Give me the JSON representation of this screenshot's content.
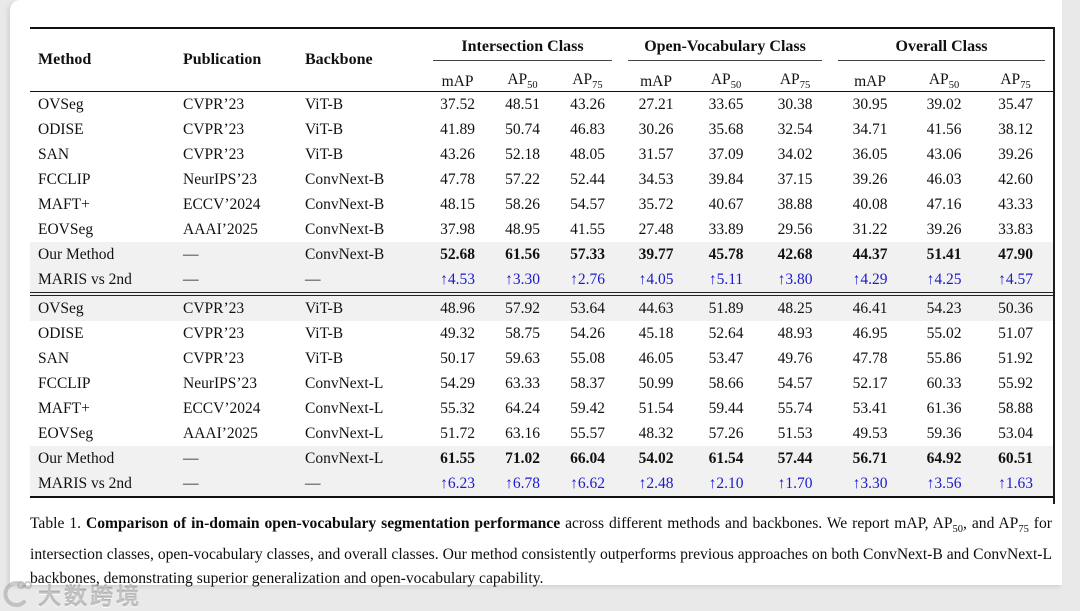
{
  "colors": {
    "accent_blue": "#1a1ace",
    "shaded_row": "#f1f1f1",
    "rule": "#111111"
  },
  "watermark": {
    "text": "大数跨境"
  },
  "table": {
    "col_headers": [
      "Method",
      "Publication",
      "Backbone"
    ],
    "groups": [
      {
        "label": "Intersection Class"
      },
      {
        "label": "Open-Vocabulary Class"
      },
      {
        "label": "Overall Class"
      }
    ],
    "subcols": [
      {
        "base": "mAP",
        "sub": ""
      },
      {
        "base": "AP",
        "sub": "50"
      },
      {
        "base": "AP",
        "sub": "75"
      }
    ],
    "blocks": [
      {
        "rows": [
          {
            "method": "OVSeg",
            "publication": "CVPR’23",
            "backbone": "ViT-B",
            "values": [
              "37.52",
              "48.51",
              "43.26",
              "27.21",
              "33.65",
              "30.38",
              "30.95",
              "39.02",
              "35.47"
            ],
            "shaded": false,
            "bold": false,
            "blue": false
          },
          {
            "method": "ODISE",
            "publication": "CVPR’23",
            "backbone": "ViT-B",
            "values": [
              "41.89",
              "50.74",
              "46.83",
              "30.26",
              "35.68",
              "32.54",
              "34.71",
              "41.56",
              "38.12"
            ],
            "shaded": false,
            "bold": false,
            "blue": false
          },
          {
            "method": "SAN",
            "publication": "CVPR’23",
            "backbone": "ViT-B",
            "values": [
              "43.26",
              "52.18",
              "48.05",
              "31.57",
              "37.09",
              "34.02",
              "36.05",
              "43.06",
              "39.26"
            ],
            "shaded": false,
            "bold": false,
            "blue": false
          },
          {
            "method": "FCCLIP",
            "publication": "NeurIPS’23",
            "backbone": "ConvNext-B",
            "values": [
              "47.78",
              "57.22",
              "52.44",
              "34.53",
              "39.84",
              "37.15",
              "39.26",
              "46.03",
              "42.60"
            ],
            "shaded": false,
            "bold": false,
            "blue": false
          },
          {
            "method": "MAFT+",
            "publication": "ECCV’2024",
            "backbone": "ConvNext-B",
            "values": [
              "48.15",
              "58.26",
              "54.57",
              "35.72",
              "40.67",
              "38.88",
              "40.08",
              "47.16",
              "43.33"
            ],
            "shaded": false,
            "bold": false,
            "blue": false
          },
          {
            "method": "EOVSeg",
            "publication": "AAAI’2025",
            "backbone": "ConvNext-B",
            "values": [
              "37.98",
              "48.95",
              "41.55",
              "27.48",
              "33.89",
              "29.56",
              "31.22",
              "39.26",
              "33.83"
            ],
            "shaded": false,
            "bold": false,
            "blue": false
          },
          {
            "method": "Our Method",
            "publication": "—",
            "backbone": "ConvNext-B",
            "values": [
              "52.68",
              "61.56",
              "57.33",
              "39.77",
              "45.78",
              "42.68",
              "44.37",
              "51.41",
              "47.90"
            ],
            "shaded": true,
            "bold": true,
            "blue": false
          },
          {
            "method": "MARIS vs 2nd",
            "publication": "—",
            "backbone": "—",
            "values": [
              "↑4.53",
              "↑3.30",
              "↑2.76",
              "↑4.05",
              "↑5.11",
              "↑3.80",
              "↑4.29",
              "↑4.25",
              "↑4.57"
            ],
            "shaded": true,
            "bold": false,
            "blue": true
          }
        ]
      },
      {
        "rows": [
          {
            "method": "OVSeg",
            "publication": "CVPR’23",
            "backbone": "ViT-B",
            "values": [
              "48.96",
              "57.92",
              "53.64",
              "44.63",
              "51.89",
              "48.25",
              "46.41",
              "54.23",
              "50.36"
            ],
            "shaded": true,
            "bold": false,
            "blue": false
          },
          {
            "method": "ODISE",
            "publication": "CVPR’23",
            "backbone": "ViT-B",
            "values": [
              "49.32",
              "58.75",
              "54.26",
              "45.18",
              "52.64",
              "48.93",
              "46.95",
              "55.02",
              "51.07"
            ],
            "shaded": false,
            "bold": false,
            "blue": false
          },
          {
            "method": "SAN",
            "publication": "CVPR’23",
            "backbone": "ViT-B",
            "values": [
              "50.17",
              "59.63",
              "55.08",
              "46.05",
              "53.47",
              "49.76",
              "47.78",
              "55.86",
              "51.92"
            ],
            "shaded": false,
            "bold": false,
            "blue": false
          },
          {
            "method": "FCCLIP",
            "publication": "NeurIPS’23",
            "backbone": "ConvNext-L",
            "values": [
              "54.29",
              "63.33",
              "58.37",
              "50.99",
              "58.66",
              "54.57",
              "52.17",
              "60.33",
              "55.92"
            ],
            "shaded": false,
            "bold": false,
            "blue": false
          },
          {
            "method": "MAFT+",
            "publication": "ECCV’2024",
            "backbone": "ConvNext-L",
            "values": [
              "55.32",
              "64.24",
              "59.42",
              "51.54",
              "59.44",
              "55.74",
              "53.41",
              "61.36",
              "58.88"
            ],
            "shaded": false,
            "bold": false,
            "blue": false
          },
          {
            "method": "EOVSeg",
            "publication": "AAAI’2025",
            "backbone": "ConvNext-L",
            "values": [
              "51.72",
              "63.16",
              "55.57",
              "48.32",
              "57.26",
              "51.53",
              "49.53",
              "59.36",
              "53.04"
            ],
            "shaded": false,
            "bold": false,
            "blue": false
          },
          {
            "method": "Our Method",
            "publication": "—",
            "backbone": "ConvNext-L",
            "values": [
              "61.55",
              "71.02",
              "66.04",
              "54.02",
              "61.54",
              "57.44",
              "56.71",
              "64.92",
              "60.51"
            ],
            "shaded": true,
            "bold": true,
            "blue": false
          },
          {
            "method": "MARIS vs 2nd",
            "publication": "—",
            "backbone": "—",
            "values": [
              "↑6.23",
              "↑6.78",
              "↑6.62",
              "↑2.48",
              "↑2.10",
              "↑1.70",
              "↑3.30",
              "↑3.56",
              "↑1.63"
            ],
            "shaded": true,
            "bold": false,
            "blue": true
          }
        ]
      }
    ]
  },
  "caption": {
    "label": "Table 1.",
    "bold": "Comparison of in-domain open-vocabulary segmentation performance",
    "t1": " across different methods and backbones. We report mAP, AP",
    "sub1": "50",
    "t2": ", and AP",
    "sub2": "75",
    "t3": " for intersection classes, open-vocabulary classes, and overall classes. Our method consistently outperforms previous approaches on both ConvNext-B and ConvNext-L backbones, demonstrating superior generalization and open-vocabulary capability."
  }
}
